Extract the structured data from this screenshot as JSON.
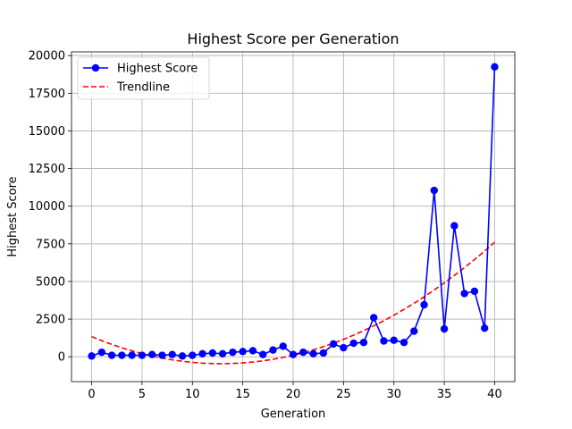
{
  "chart_data": {
    "type": "line",
    "title": "Highest Score per Generation",
    "xlabel": "Generation",
    "ylabel": "Highest Score",
    "xlim": [
      -2,
      42
    ],
    "ylim": [
      -1650,
      20250
    ],
    "xticks": [
      0,
      5,
      10,
      15,
      20,
      25,
      30,
      35,
      40
    ],
    "yticks": [
      0,
      2500,
      5000,
      7500,
      10000,
      12500,
      15000,
      17500,
      20000
    ],
    "grid": true,
    "legend_position": "top-left",
    "series": [
      {
        "name": "Highest Score",
        "style": "solid-with-markers",
        "color": "#0000ff",
        "x": [
          0,
          1,
          2,
          3,
          4,
          5,
          6,
          7,
          8,
          9,
          10,
          11,
          12,
          13,
          14,
          15,
          16,
          17,
          18,
          19,
          20,
          21,
          22,
          23,
          24,
          25,
          26,
          27,
          28,
          29,
          30,
          31,
          32,
          33,
          34,
          35,
          36,
          37,
          38,
          39,
          40
        ],
        "values": [
          50,
          300,
          100,
          100,
          100,
          100,
          150,
          100,
          150,
          50,
          100,
          200,
          250,
          200,
          300,
          350,
          400,
          150,
          450,
          700,
          150,
          300,
          200,
          250,
          850,
          600,
          900,
          950,
          2600,
          1050,
          1100,
          950,
          1700,
          3450,
          11050,
          1850,
          8700,
          4200,
          4350,
          1900,
          19250
        ]
      },
      {
        "name": "Trendline",
        "style": "dashed",
        "color": "#ff0000",
        "fit": "quadratic",
        "coefficients": [
          10.916,
          -280.1,
          1340
        ]
      }
    ]
  }
}
